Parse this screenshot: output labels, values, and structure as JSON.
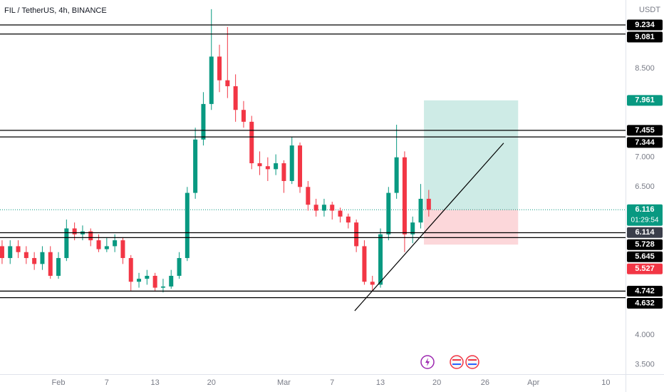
{
  "chart_data": {
    "type": "candlestick",
    "title": "FIL / TetherUS, 4h, BINANCE",
    "currency": "USDT",
    "up_color": "#089981",
    "down_color": "#f23645",
    "x": [
      -7,
      -6,
      -5,
      -4,
      -3,
      -2,
      -1,
      0,
      1,
      2,
      3,
      4,
      5,
      6,
      7,
      8,
      9,
      10,
      11,
      12,
      13,
      14,
      15,
      16,
      17,
      18,
      19,
      20,
      21,
      22,
      23,
      24,
      25,
      26,
      27,
      28,
      29,
      30,
      31,
      32,
      33,
      34,
      35,
      36,
      37,
      38,
      39,
      40,
      41,
      42,
      43,
      44,
      45,
      46
    ],
    "open": [
      5.5,
      5.3,
      5.5,
      5.4,
      5.3,
      5.2,
      5.4,
      5.0,
      5.3,
      5.8,
      5.7,
      5.75,
      5.6,
      5.45,
      5.5,
      5.6,
      5.3,
      4.9,
      4.95,
      5.0,
      4.8,
      4.82,
      5.0,
      5.3,
      6.4,
      7.3,
      7.9,
      8.7,
      8.3,
      8.2,
      7.8,
      7.6,
      6.9,
      6.85,
      6.8,
      6.9,
      6.6,
      7.2,
      6.5,
      6.2,
      6.1,
      6.2,
      6.1,
      6.0,
      5.9,
      5.5,
      4.9,
      4.85,
      5.7,
      6.4,
      7.0,
      5.7,
      5.9,
      6.3
    ],
    "high": [
      5.6,
      5.6,
      5.6,
      5.5,
      5.4,
      5.5,
      5.5,
      5.4,
      5.95,
      5.9,
      5.85,
      5.8,
      5.7,
      5.65,
      5.7,
      5.65,
      5.35,
      5.05,
      5.1,
      5.05,
      4.95,
      5.1,
      5.4,
      6.5,
      7.5,
      8.1,
      9.5,
      8.9,
      9.2,
      8.4,
      7.95,
      7.7,
      7.1,
      7.0,
      7.05,
      6.95,
      7.35,
      7.25,
      6.6,
      6.3,
      6.3,
      6.25,
      6.15,
      6.05,
      5.95,
      5.6,
      5.0,
      5.8,
      6.5,
      7.55,
      7.1,
      6.0,
      6.55,
      6.45
    ],
    "low": [
      5.2,
      5.2,
      5.3,
      5.2,
      5.1,
      5.1,
      4.95,
      4.95,
      5.25,
      5.6,
      5.6,
      5.5,
      5.4,
      5.4,
      5.4,
      5.2,
      4.75,
      4.8,
      4.85,
      4.75,
      4.72,
      4.78,
      4.95,
      5.25,
      6.3,
      7.2,
      7.8,
      8.1,
      8.0,
      7.6,
      7.5,
      6.8,
      6.7,
      6.6,
      6.7,
      6.4,
      6.55,
      6.4,
      6.1,
      6.0,
      6.0,
      5.95,
      5.9,
      5.8,
      5.4,
      4.85,
      4.74,
      4.8,
      5.6,
      6.3,
      5.4,
      5.55,
      5.8,
      6.0
    ],
    "close": [
      5.3,
      5.5,
      5.4,
      5.3,
      5.2,
      5.4,
      5.0,
      5.3,
      5.8,
      5.7,
      5.75,
      5.6,
      5.45,
      5.5,
      5.6,
      5.3,
      4.9,
      4.95,
      5.0,
      4.8,
      4.82,
      5.0,
      5.3,
      6.4,
      7.3,
      7.9,
      8.7,
      8.3,
      8.2,
      7.8,
      7.6,
      6.9,
      6.85,
      6.8,
      6.9,
      6.6,
      7.2,
      6.5,
      6.2,
      6.1,
      6.2,
      6.1,
      6.0,
      5.9,
      5.5,
      4.9,
      4.85,
      5.7,
      6.4,
      7.0,
      5.7,
      5.9,
      6.3,
      6.116
    ],
    "xlim": [
      -7.26,
      70.44
    ],
    "xticks": [
      {
        "value": 0,
        "label": "Feb"
      },
      {
        "value": 6,
        "label": "7"
      },
      {
        "value": 12,
        "label": "13"
      },
      {
        "value": 19,
        "label": "20"
      },
      {
        "value": 28,
        "label": "Mar"
      },
      {
        "value": 34,
        "label": "7"
      },
      {
        "value": 40,
        "label": "13"
      },
      {
        "value": 47,
        "label": "20"
      },
      {
        "value": 53,
        "label": "26"
      },
      {
        "value": 59,
        "label": "Apr"
      },
      {
        "value": 68,
        "label": "10"
      }
    ],
    "ylim": [
      3.34,
      9.655
    ],
    "yticks": [
      {
        "value": 3.5,
        "label": "3.500"
      },
      {
        "value": 4,
        "label": "4.000"
      },
      {
        "value": 6.5,
        "label": "6.500"
      },
      {
        "value": 7,
        "label": "7.000"
      },
      {
        "value": 8.5,
        "label": "8.500"
      }
    ],
    "levels": [
      9.234,
      9.081,
      7.455,
      7.344,
      5.728,
      5.645,
      4.742,
      4.632
    ],
    "last_price": 6.116,
    "countdown": "01:29:54",
    "prev_close": 6.114,
    "position": {
      "entry": 6.116,
      "target": 7.961,
      "stop": 5.527,
      "x": [
        45.4,
        57.1
      ]
    },
    "trend": {
      "x": [
        36.8,
        55.3
      ],
      "y": [
        4.41,
        7.24
      ]
    }
  }
}
